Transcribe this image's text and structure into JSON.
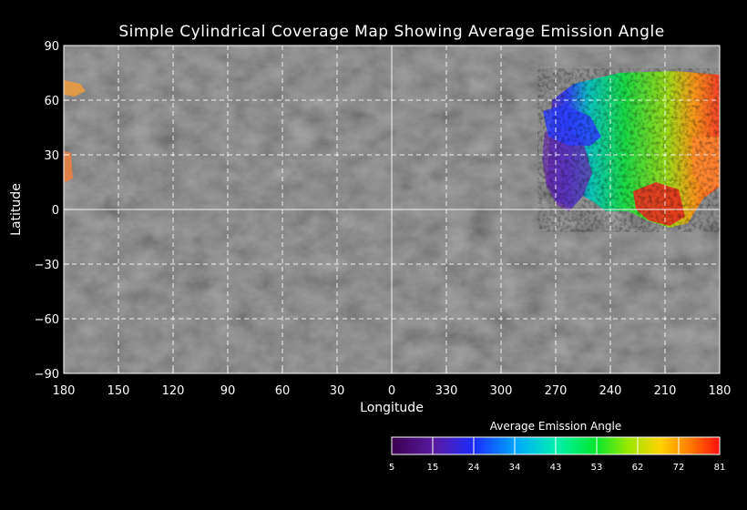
{
  "title": "Simple Cylindrical Coverage Map Showing Average Emission Angle",
  "xlabel": "Longitude",
  "ylabel": "Latitude",
  "colors": {
    "background": "#000000",
    "gridline": "#ffffff"
  },
  "chart_data": {
    "type": "heatmap",
    "projection": "simple-cylindrical",
    "x_ticks": [
      "180",
      "150",
      "120",
      "90",
      "60",
      "30",
      "0",
      "330",
      "300",
      "270",
      "240",
      "210",
      "180"
    ],
    "y_ticks": [
      "90",
      "60",
      "30",
      "0",
      "−30",
      "−60",
      "−90"
    ],
    "longitude_range": [
      180,
      -180
    ],
    "latitude_range": [
      -90,
      90
    ],
    "grid": true,
    "colorbar": {
      "title": "Average Emission Angle",
      "ticks": [
        "5",
        "15",
        "24",
        "34",
        "43",
        "53",
        "62",
        "72",
        "81"
      ],
      "range": [
        5,
        81
      ],
      "placement": "bottom-right"
    },
    "coverage_regions": [
      {
        "lon_range": [
          298,
          180
        ],
        "lat_range": [
          -10,
          75
        ],
        "emission_angle_range": [
          5,
          81
        ],
        "emission_trend": "low in west, high in south-east"
      },
      {
        "lon_range": [
          180,
          175
        ],
        "lat_range": [
          58,
          72
        ],
        "emission_angle_range": [
          70,
          75
        ]
      },
      {
        "lon_range": [
          180,
          178
        ],
        "lat_range": [
          12,
          32
        ],
        "emission_angle_range": [
          72,
          78
        ]
      }
    ]
  }
}
